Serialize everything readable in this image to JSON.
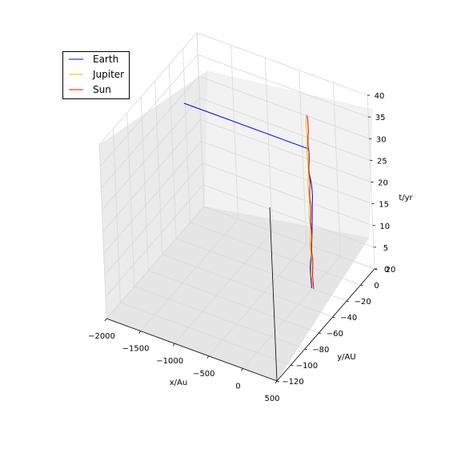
{
  "chart_data": {
    "type": "line3d",
    "title": "",
    "xlabel": "x/Au",
    "ylabel": "y/AU",
    "zlabel": "t/yr",
    "xlim": [
      -2000,
      500
    ],
    "ylim": [
      -120,
      20
    ],
    "zlim": [
      0,
      40
    ],
    "x_ticks": [
      -2000,
      -1500,
      -1000,
      -500,
      0,
      500
    ],
    "y_ticks": [
      -120,
      -100,
      -80,
      -60,
      -40,
      -20,
      0,
      20
    ],
    "z_ticks": [
      0,
      5,
      10,
      15,
      20,
      25,
      30,
      35,
      40
    ],
    "x_tick_labels": [
      "−2000",
      "−1500",
      "−1000",
      "−500",
      "0",
      "500"
    ],
    "y_tick_labels": [
      "−120",
      "−100",
      "−80",
      "−60",
      "−40",
      "−20",
      "0",
      "20"
    ],
    "z_tick_labels": [
      "0",
      "5",
      "10",
      "15",
      "20",
      "25",
      "30",
      "35",
      "40"
    ],
    "grid": true,
    "legend_position": "top-left",
    "legend": [
      "Earth",
      "Jupiter",
      "Sun"
    ],
    "series": [
      {
        "name": "Earth",
        "color": "#0000ff",
        "points": [
          [
            -11,
            -20,
            0.0
          ],
          [
            -16,
            -20,
            1.5
          ],
          [
            -21,
            -20,
            3.0
          ],
          [
            -23,
            -20,
            4.7
          ],
          [
            -11,
            -20,
            6.3
          ],
          [
            2,
            -20,
            8.0
          ],
          [
            12,
            -20,
            9.7
          ],
          [
            19,
            -20,
            11.5
          ],
          [
            27,
            -20,
            13.2
          ],
          [
            33,
            -20,
            15.0
          ],
          [
            39,
            -20,
            16.7
          ],
          [
            44,
            -20,
            18.4
          ],
          [
            49,
            -20,
            20.0
          ],
          [
            55,
            -20,
            21.5
          ],
          [
            55,
            -20,
            22.6
          ],
          [
            50,
            -20,
            24.0
          ],
          [
            39,
            -20,
            25.2
          ],
          [
            27,
            -20,
            26.1
          ],
          [
            18,
            -20,
            26.8
          ],
          [
            18,
            -20,
            28.2
          ],
          [
            27,
            -20,
            29.4
          ],
          [
            31,
            -20,
            30.5
          ],
          [
            31,
            -20,
            31.4
          ],
          [
            23,
            -20,
            32.3
          ],
          [
            -1800,
            -20,
            32.3
          ]
        ]
      },
      {
        "name": "Jupiter",
        "color": "#cccc00",
        "points": [
          [
            19,
            -20,
            0.0
          ],
          [
            0,
            -20,
            1.2
          ],
          [
            -14,
            -20,
            3.0
          ],
          [
            -5,
            -20,
            4.8
          ],
          [
            5,
            -20,
            6.5
          ],
          [
            -2,
            -20,
            8.2
          ],
          [
            -9,
            -20,
            10.0
          ],
          [
            -1,
            -20,
            11.8
          ],
          [
            8,
            -20,
            13.5
          ],
          [
            1,
            -20,
            15.3
          ],
          [
            -6,
            -20,
            17.0
          ],
          [
            2,
            -20,
            18.8
          ],
          [
            9,
            -20,
            20.5
          ],
          [
            3,
            -20,
            22.3
          ],
          [
            -4,
            -20,
            24.0
          ],
          [
            4,
            -20,
            25.8
          ],
          [
            12,
            -20,
            27.5
          ],
          [
            5,
            -20,
            29.3
          ],
          [
            -1,
            -20,
            31.0
          ],
          [
            7,
            -20,
            32.8
          ],
          [
            14,
            -20,
            34.5
          ],
          [
            8,
            -20,
            36.3
          ],
          [
            2,
            -20,
            38.0
          ],
          [
            11,
            -20,
            40.0
          ]
        ]
      },
      {
        "name": "Sun",
        "color": "#ff0000",
        "points": [
          [
            16,
            -20,
            0.0
          ],
          [
            13,
            -20,
            1.5
          ],
          [
            8,
            -20,
            3.2
          ],
          [
            16,
            -20,
            5.0
          ],
          [
            21,
            -20,
            6.8
          ],
          [
            9,
            -20,
            8.5
          ],
          [
            10,
            -20,
            10.2
          ],
          [
            22,
            -20,
            12.0
          ],
          [
            19,
            -20,
            13.8
          ],
          [
            11,
            -20,
            15.5
          ],
          [
            21,
            -20,
            17.3
          ],
          [
            25,
            -20,
            19.0
          ],
          [
            14,
            -20,
            20.8
          ],
          [
            17,
            -20,
            22.5
          ],
          [
            29,
            -20,
            24.3
          ],
          [
            24,
            -20,
            26.0
          ],
          [
            16,
            -20,
            27.8
          ],
          [
            28,
            -20,
            29.5
          ],
          [
            32,
            -20,
            31.3
          ],
          [
            21,
            -20,
            33.0
          ],
          [
            24,
            -20,
            34.8
          ],
          [
            36,
            -20,
            36.5
          ],
          [
            32,
            -20,
            38.3
          ],
          [
            28,
            -20,
            40.0
          ]
        ]
      }
    ]
  }
}
